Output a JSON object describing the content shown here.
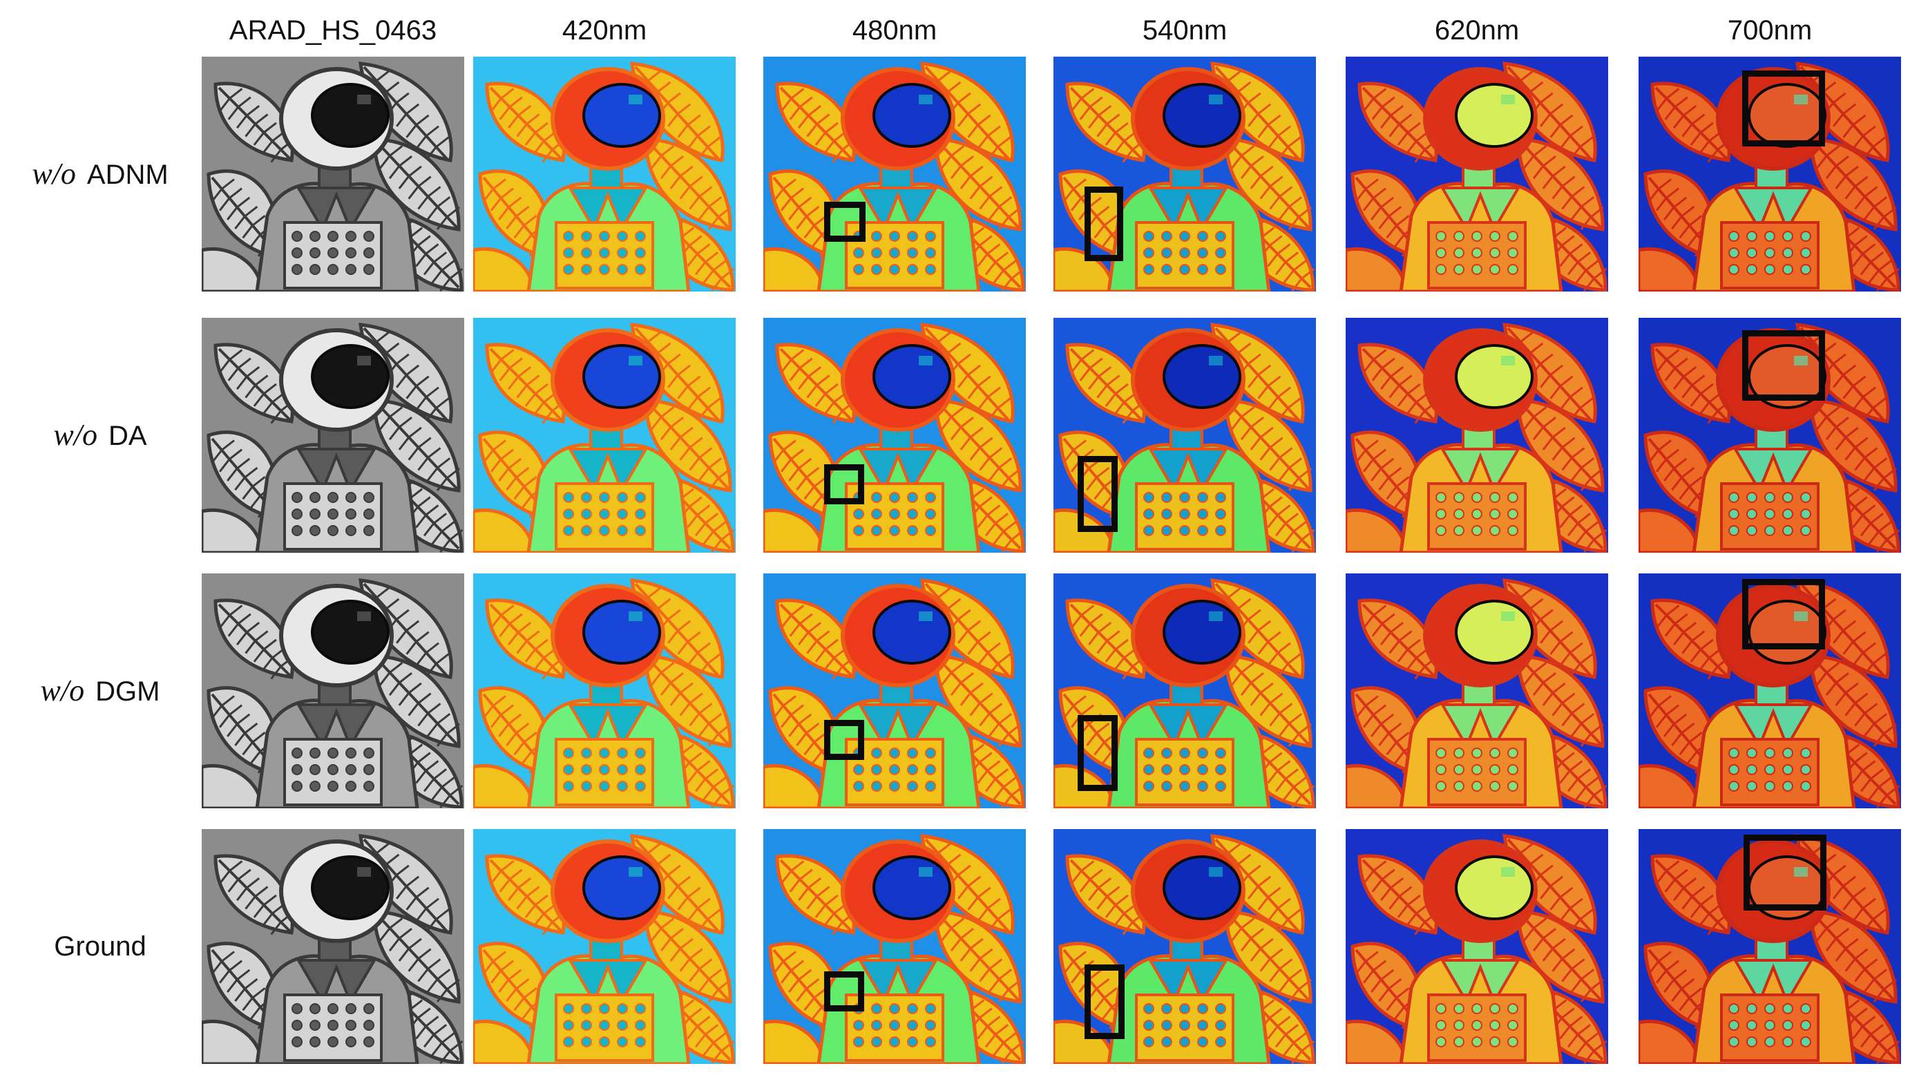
{
  "figure": {
    "column_headers": [
      "ARAD_HS_0463",
      "420nm",
      "480nm",
      "540nm",
      "620nm",
      "700nm"
    ],
    "rows": [
      {
        "prefix": "w/o",
        "label": "ADNM"
      },
      {
        "prefix": "w/o",
        "label": "DA"
      },
      {
        "prefix": "w/o",
        "label": "DGM"
      },
      {
        "prefix": "",
        "label": "Ground"
      }
    ],
    "colormap": "jet",
    "grayscale_column": 0,
    "highlight_box_color": "#0a0a0a"
  }
}
